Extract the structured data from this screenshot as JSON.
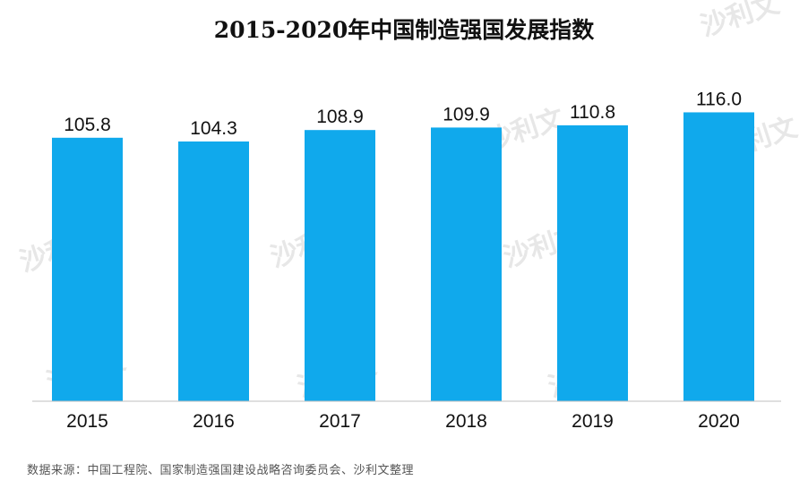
{
  "chart_data": {
    "type": "bar",
    "title": "2015-2020年中国制造强国发展指数",
    "categories": [
      "2015",
      "2016",
      "2017",
      "2018",
      "2019",
      "2020"
    ],
    "values": [
      105.8,
      104.3,
      108.9,
      109.9,
      110.8,
      116.0
    ],
    "value_labels": [
      "105.8",
      "104.3",
      "108.9",
      "109.9",
      "110.8",
      "116.0"
    ],
    "ylim": [
      0,
      120
    ],
    "grid": false,
    "legend": "none",
    "bar_color": "#10a9ec",
    "source_note": "数据来源：中国工程院、国家制造强国建设战略咨询委员会、沙利文整理"
  },
  "watermark": {
    "text": "沙利文"
  }
}
